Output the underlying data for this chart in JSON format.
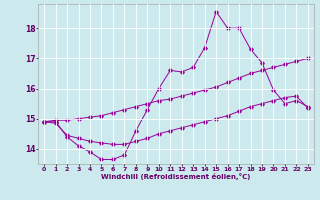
{
  "title": "",
  "xlabel": "Windchill (Refroidissement éolien,°C)",
  "ylabel": "",
  "bg_color": "#cce9ed",
  "line_color": "#990099",
  "grid_color": "#ffffff",
  "xlim": [
    -0.5,
    23.5
  ],
  "ylim": [
    13.5,
    18.8
  ],
  "yticks": [
    14,
    15,
    16,
    17,
    18
  ],
  "xticks": [
    0,
    1,
    2,
    3,
    4,
    5,
    6,
    7,
    8,
    9,
    10,
    11,
    12,
    13,
    14,
    15,
    16,
    17,
    18,
    19,
    20,
    21,
    22,
    23
  ],
  "line1_x": [
    0,
    1,
    2,
    3,
    4,
    5,
    6,
    7,
    8,
    9,
    10,
    11,
    12,
    13,
    14,
    15,
    16,
    17,
    18,
    19,
    20,
    21,
    22,
    23
  ],
  "line1_y": [
    14.9,
    14.9,
    14.4,
    14.1,
    13.9,
    13.65,
    13.65,
    13.8,
    14.6,
    15.3,
    16.0,
    16.6,
    16.55,
    16.7,
    17.35,
    18.55,
    18.0,
    18.0,
    17.3,
    16.85,
    15.95,
    15.5,
    15.6,
    15.4
  ],
  "line2_x": [
    0,
    1,
    2,
    3,
    4,
    5,
    6,
    7,
    8,
    9,
    10,
    11,
    12,
    13,
    14,
    15,
    16,
    17,
    18,
    19,
    20,
    21,
    22,
    23
  ],
  "line2_y": [
    14.9,
    14.95,
    14.95,
    15.0,
    15.05,
    15.1,
    15.2,
    15.3,
    15.4,
    15.5,
    15.6,
    15.65,
    15.75,
    15.85,
    15.95,
    16.05,
    16.2,
    16.35,
    16.5,
    16.6,
    16.7,
    16.8,
    16.9,
    17.0
  ],
  "line3_x": [
    0,
    1,
    2,
    3,
    4,
    5,
    6,
    7,
    8,
    9,
    10,
    11,
    12,
    13,
    14,
    15,
    16,
    17,
    18,
    19,
    20,
    21,
    22,
    23
  ],
  "line3_y": [
    14.9,
    14.85,
    14.45,
    14.35,
    14.25,
    14.2,
    14.15,
    14.15,
    14.25,
    14.35,
    14.5,
    14.6,
    14.7,
    14.8,
    14.9,
    15.0,
    15.1,
    15.25,
    15.4,
    15.5,
    15.6,
    15.7,
    15.75,
    15.35
  ]
}
